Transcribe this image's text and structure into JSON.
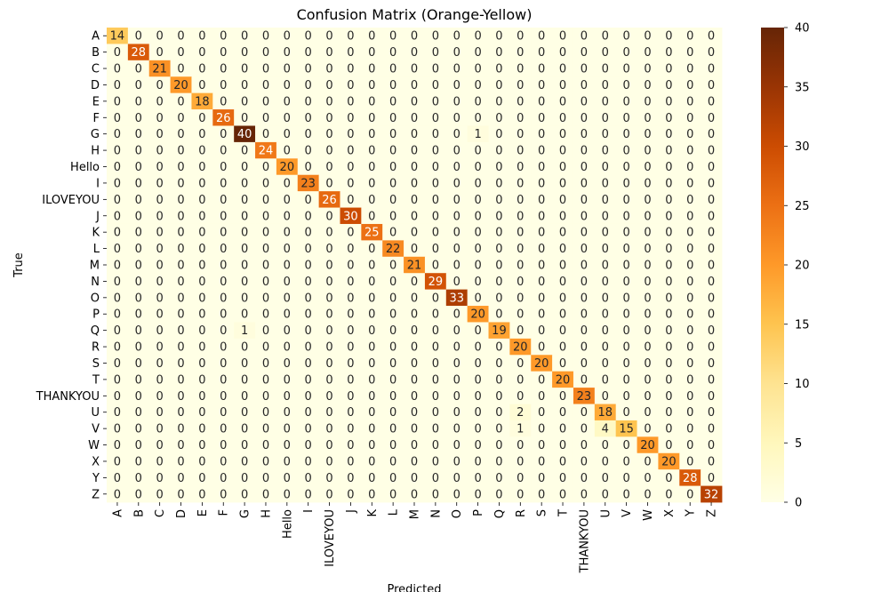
{
  "chart_data": {
    "type": "heatmap",
    "title": "Confusion Matrix (Orange-Yellow)",
    "xlabel": "Predicted",
    "ylabel": "True",
    "labels": [
      "A",
      "B",
      "C",
      "D",
      "E",
      "F",
      "G",
      "H",
      "Hello",
      "I",
      "ILOVEYOU",
      "J",
      "K",
      "L",
      "M",
      "N",
      "O",
      "P",
      "Q",
      "R",
      "S",
      "T",
      "THANKYOU",
      "U",
      "V",
      "W",
      "X",
      "Y",
      "Z"
    ],
    "matrix": [
      [
        14,
        0,
        0,
        0,
        0,
        0,
        0,
        0,
        0,
        0,
        0,
        0,
        0,
        0,
        0,
        0,
        0,
        0,
        0,
        0,
        0,
        0,
        0,
        0,
        0,
        0,
        0,
        0,
        0
      ],
      [
        0,
        28,
        0,
        0,
        0,
        0,
        0,
        0,
        0,
        0,
        0,
        0,
        0,
        0,
        0,
        0,
        0,
        0,
        0,
        0,
        0,
        0,
        0,
        0,
        0,
        0,
        0,
        0,
        0
      ],
      [
        0,
        0,
        21,
        0,
        0,
        0,
        0,
        0,
        0,
        0,
        0,
        0,
        0,
        0,
        0,
        0,
        0,
        0,
        0,
        0,
        0,
        0,
        0,
        0,
        0,
        0,
        0,
        0,
        0
      ],
      [
        0,
        0,
        0,
        20,
        0,
        0,
        0,
        0,
        0,
        0,
        0,
        0,
        0,
        0,
        0,
        0,
        0,
        0,
        0,
        0,
        0,
        0,
        0,
        0,
        0,
        0,
        0,
        0,
        0
      ],
      [
        0,
        0,
        0,
        0,
        18,
        0,
        0,
        0,
        0,
        0,
        0,
        0,
        0,
        0,
        0,
        0,
        0,
        0,
        0,
        0,
        0,
        0,
        0,
        0,
        0,
        0,
        0,
        0,
        0
      ],
      [
        0,
        0,
        0,
        0,
        0,
        26,
        0,
        0,
        0,
        0,
        0,
        0,
        0,
        0,
        0,
        0,
        0,
        0,
        0,
        0,
        0,
        0,
        0,
        0,
        0,
        0,
        0,
        0,
        0
      ],
      [
        0,
        0,
        0,
        0,
        0,
        0,
        40,
        0,
        0,
        0,
        0,
        0,
        0,
        0,
        0,
        0,
        0,
        1,
        0,
        0,
        0,
        0,
        0,
        0,
        0,
        0,
        0,
        0,
        0
      ],
      [
        0,
        0,
        0,
        0,
        0,
        0,
        0,
        24,
        0,
        0,
        0,
        0,
        0,
        0,
        0,
        0,
        0,
        0,
        0,
        0,
        0,
        0,
        0,
        0,
        0,
        0,
        0,
        0,
        0
      ],
      [
        0,
        0,
        0,
        0,
        0,
        0,
        0,
        0,
        20,
        0,
        0,
        0,
        0,
        0,
        0,
        0,
        0,
        0,
        0,
        0,
        0,
        0,
        0,
        0,
        0,
        0,
        0,
        0,
        0
      ],
      [
        0,
        0,
        0,
        0,
        0,
        0,
        0,
        0,
        0,
        23,
        0,
        0,
        0,
        0,
        0,
        0,
        0,
        0,
        0,
        0,
        0,
        0,
        0,
        0,
        0,
        0,
        0,
        0,
        0
      ],
      [
        0,
        0,
        0,
        0,
        0,
        0,
        0,
        0,
        0,
        0,
        26,
        0,
        0,
        0,
        0,
        0,
        0,
        0,
        0,
        0,
        0,
        0,
        0,
        0,
        0,
        0,
        0,
        0,
        0
      ],
      [
        0,
        0,
        0,
        0,
        0,
        0,
        0,
        0,
        0,
        0,
        0,
        30,
        0,
        0,
        0,
        0,
        0,
        0,
        0,
        0,
        0,
        0,
        0,
        0,
        0,
        0,
        0,
        0,
        0
      ],
      [
        0,
        0,
        0,
        0,
        0,
        0,
        0,
        0,
        0,
        0,
        0,
        0,
        25,
        0,
        0,
        0,
        0,
        0,
        0,
        0,
        0,
        0,
        0,
        0,
        0,
        0,
        0,
        0,
        0
      ],
      [
        0,
        0,
        0,
        0,
        0,
        0,
        0,
        0,
        0,
        0,
        0,
        0,
        0,
        22,
        0,
        0,
        0,
        0,
        0,
        0,
        0,
        0,
        0,
        0,
        0,
        0,
        0,
        0,
        0
      ],
      [
        0,
        0,
        0,
        0,
        0,
        0,
        0,
        0,
        0,
        0,
        0,
        0,
        0,
        0,
        21,
        0,
        0,
        0,
        0,
        0,
        0,
        0,
        0,
        0,
        0,
        0,
        0,
        0,
        0
      ],
      [
        0,
        0,
        0,
        0,
        0,
        0,
        0,
        0,
        0,
        0,
        0,
        0,
        0,
        0,
        0,
        29,
        0,
        0,
        0,
        0,
        0,
        0,
        0,
        0,
        0,
        0,
        0,
        0,
        0
      ],
      [
        0,
        0,
        0,
        0,
        0,
        0,
        0,
        0,
        0,
        0,
        0,
        0,
        0,
        0,
        0,
        0,
        33,
        0,
        0,
        0,
        0,
        0,
        0,
        0,
        0,
        0,
        0,
        0,
        0
      ],
      [
        0,
        0,
        0,
        0,
        0,
        0,
        0,
        0,
        0,
        0,
        0,
        0,
        0,
        0,
        0,
        0,
        0,
        20,
        0,
        0,
        0,
        0,
        0,
        0,
        0,
        0,
        0,
        0,
        0
      ],
      [
        0,
        0,
        0,
        0,
        0,
        0,
        1,
        0,
        0,
        0,
        0,
        0,
        0,
        0,
        0,
        0,
        0,
        0,
        19,
        0,
        0,
        0,
        0,
        0,
        0,
        0,
        0,
        0,
        0
      ],
      [
        0,
        0,
        0,
        0,
        0,
        0,
        0,
        0,
        0,
        0,
        0,
        0,
        0,
        0,
        0,
        0,
        0,
        0,
        0,
        20,
        0,
        0,
        0,
        0,
        0,
        0,
        0,
        0,
        0
      ],
      [
        0,
        0,
        0,
        0,
        0,
        0,
        0,
        0,
        0,
        0,
        0,
        0,
        0,
        0,
        0,
        0,
        0,
        0,
        0,
        0,
        20,
        0,
        0,
        0,
        0,
        0,
        0,
        0,
        0
      ],
      [
        0,
        0,
        0,
        0,
        0,
        0,
        0,
        0,
        0,
        0,
        0,
        0,
        0,
        0,
        0,
        0,
        0,
        0,
        0,
        0,
        0,
        20,
        0,
        0,
        0,
        0,
        0,
        0,
        0
      ],
      [
        0,
        0,
        0,
        0,
        0,
        0,
        0,
        0,
        0,
        0,
        0,
        0,
        0,
        0,
        0,
        0,
        0,
        0,
        0,
        0,
        0,
        0,
        23,
        0,
        0,
        0,
        0,
        0,
        0
      ],
      [
        0,
        0,
        0,
        0,
        0,
        0,
        0,
        0,
        0,
        0,
        0,
        0,
        0,
        0,
        0,
        0,
        0,
        0,
        0,
        2,
        0,
        0,
        0,
        18,
        0,
        0,
        0,
        0,
        0
      ],
      [
        0,
        0,
        0,
        0,
        0,
        0,
        0,
        0,
        0,
        0,
        0,
        0,
        0,
        0,
        0,
        0,
        0,
        0,
        0,
        1,
        0,
        0,
        0,
        4,
        15,
        0,
        0,
        0,
        0
      ],
      [
        0,
        0,
        0,
        0,
        0,
        0,
        0,
        0,
        0,
        0,
        0,
        0,
        0,
        0,
        0,
        0,
        0,
        0,
        0,
        0,
        0,
        0,
        0,
        0,
        0,
        20,
        0,
        0,
        0
      ],
      [
        0,
        0,
        0,
        0,
        0,
        0,
        0,
        0,
        0,
        0,
        0,
        0,
        0,
        0,
        0,
        0,
        0,
        0,
        0,
        0,
        0,
        0,
        0,
        0,
        0,
        0,
        20,
        0,
        0
      ],
      [
        0,
        0,
        0,
        0,
        0,
        0,
        0,
        0,
        0,
        0,
        0,
        0,
        0,
        0,
        0,
        0,
        0,
        0,
        0,
        0,
        0,
        0,
        0,
        0,
        0,
        0,
        0,
        28,
        0
      ],
      [
        0,
        0,
        0,
        0,
        0,
        0,
        0,
        0,
        0,
        0,
        0,
        0,
        0,
        0,
        0,
        0,
        0,
        0,
        0,
        0,
        0,
        0,
        0,
        0,
        0,
        0,
        0,
        0,
        32
      ]
    ],
    "vmin": 0,
    "vmax": 40,
    "colorbar_ticks": [
      0,
      5,
      10,
      15,
      20,
      25,
      30,
      35,
      40
    ],
    "colormap": "YlOrBr",
    "colormap_stops": [
      "#ffffe5",
      "#fff7bc",
      "#fee391",
      "#fec44f",
      "#fe9929",
      "#ec7014",
      "#cc4c02",
      "#993404",
      "#662506"
    ],
    "annotation_light_text": "#ffffff",
    "annotation_dark_text": "#262626"
  }
}
